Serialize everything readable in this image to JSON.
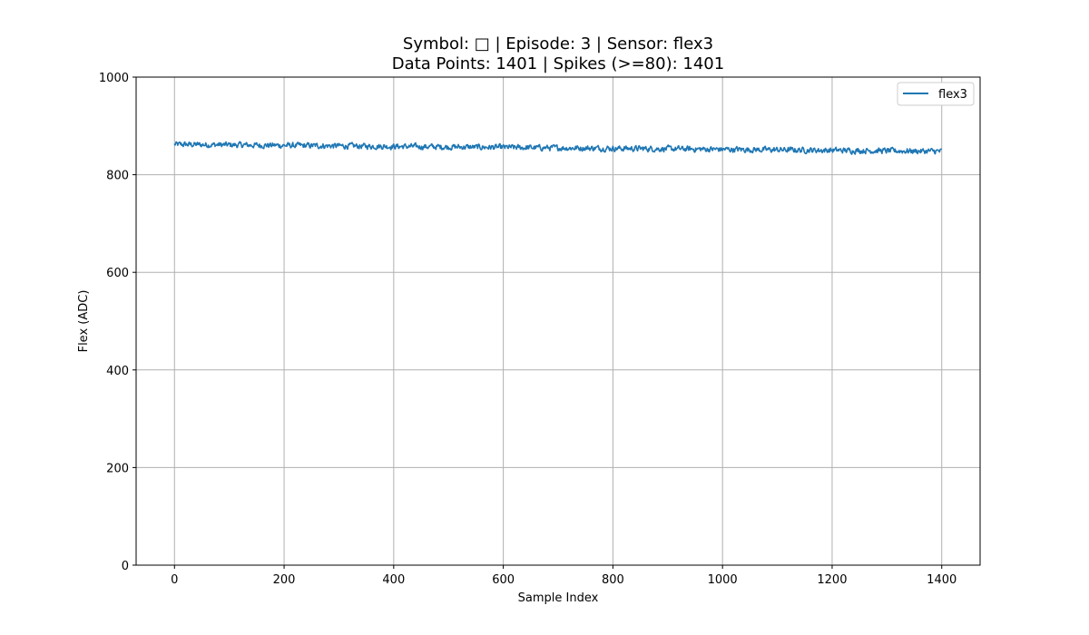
{
  "chart_data": {
    "type": "line",
    "title_lines": [
      "Symbol: □ | Episode: 3 | Sensor: flex3",
      "Data Points: 1401 | Spikes (>=80): 1401"
    ],
    "xlabel": "Sample Index",
    "ylabel": "Flex (ADC)",
    "xlim": [
      -70,
      1470
    ],
    "ylim": [
      0,
      1000
    ],
    "xticks": [
      0,
      200,
      400,
      600,
      800,
      1000,
      1200,
      1400
    ],
    "yticks": [
      0,
      200,
      400,
      600,
      800,
      1000
    ],
    "grid": true,
    "legend_position": "top-right",
    "series": [
      {
        "name": "flex3",
        "color": "#1f77b4",
        "x_start": 0,
        "x_end": 1400,
        "trend_start": 862,
        "trend_end": 848,
        "noise_amplitude": 9
      }
    ]
  }
}
